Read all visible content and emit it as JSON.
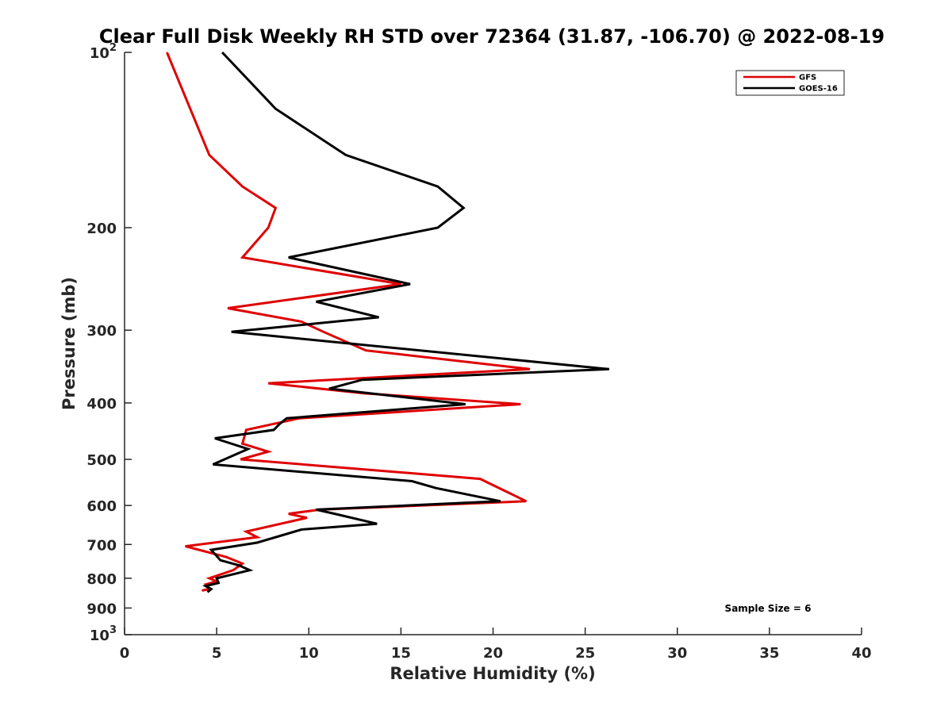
{
  "chart_data": {
    "type": "line",
    "title": "Clear Full Disk Weekly RH STD over 72364 (31.87, -106.70) @ 2022-08-19",
    "xlabel": "Relative Humidity (%)",
    "ylabel": "Pressure (mb)",
    "xlim": [
      0,
      40
    ],
    "ylim": [
      100,
      1000
    ],
    "y_scale": "log",
    "y_reversed": true,
    "x_ticks": [
      0,
      5,
      10,
      15,
      20,
      25,
      30,
      35,
      40
    ],
    "x_tick_labels": [
      "0",
      "5",
      "10",
      "15",
      "20",
      "25",
      "30",
      "35",
      "40"
    ],
    "y_ticks": [
      100,
      200,
      300,
      400,
      500,
      600,
      700,
      800,
      900,
      1000
    ],
    "y_tick_labels": [
      {
        "base": "10",
        "exp": "2"
      },
      {
        "base": "200",
        "exp": ""
      },
      {
        "base": "300",
        "exp": ""
      },
      {
        "base": "400",
        "exp": ""
      },
      {
        "base": "500",
        "exp": ""
      },
      {
        "base": "600",
        "exp": ""
      },
      {
        "base": "700",
        "exp": ""
      },
      {
        "base": "800",
        "exp": ""
      },
      {
        "base": "900",
        "exp": ""
      },
      {
        "base": "10",
        "exp": "3"
      }
    ],
    "grid": false,
    "legend_position": "top-right",
    "annotation": "Sample Size = 6",
    "series": [
      {
        "name": "GFS",
        "color": "#e00000",
        "points": [
          [
            2.3,
            100
          ],
          [
            4.6,
            150
          ],
          [
            6.4,
            170
          ],
          [
            8.2,
            185
          ],
          [
            7.8,
            200
          ],
          [
            6.4,
            225
          ],
          [
            15.0,
            250
          ],
          [
            5.6,
            275
          ],
          [
            9.6,
            290
          ],
          [
            10.8,
            302
          ],
          [
            13.1,
            325
          ],
          [
            22.0,
            350
          ],
          [
            7.8,
            370
          ],
          [
            13.0,
            385
          ],
          [
            21.5,
            402
          ],
          [
            9.5,
            425
          ],
          [
            6.6,
            445
          ],
          [
            6.4,
            470
          ],
          [
            7.8,
            485
          ],
          [
            6.3,
            500
          ],
          [
            19.3,
            540
          ],
          [
            21.8,
            590
          ],
          [
            10.6,
            610
          ],
          [
            8.9,
            620
          ],
          [
            9.9,
            630
          ],
          [
            6.6,
            665
          ],
          [
            7.2,
            680
          ],
          [
            3.3,
            705
          ],
          [
            5.5,
            735
          ],
          [
            6.4,
            755
          ],
          [
            5.9,
            775
          ],
          [
            4.6,
            800
          ],
          [
            5.0,
            810
          ],
          [
            4.4,
            820
          ],
          [
            4.6,
            835
          ],
          [
            4.2,
            840
          ]
        ]
      },
      {
        "name": "GOES-16",
        "color": "#000000",
        "points": [
          [
            5.3,
            100
          ],
          [
            8.2,
            125
          ],
          [
            12.0,
            150
          ],
          [
            17.0,
            170
          ],
          [
            18.4,
            185
          ],
          [
            17.0,
            200
          ],
          [
            8.9,
            225
          ],
          [
            15.5,
            250
          ],
          [
            10.4,
            268
          ],
          [
            13.8,
            285
          ],
          [
            5.8,
            302
          ],
          [
            26.3,
            350
          ],
          [
            12.9,
            365
          ],
          [
            11.1,
            378
          ],
          [
            18.5,
            402
          ],
          [
            8.8,
            425
          ],
          [
            8.4,
            435
          ],
          [
            8.1,
            445
          ],
          [
            4.9,
            460
          ],
          [
            6.7,
            480
          ],
          [
            4.8,
            510
          ],
          [
            15.6,
            545
          ],
          [
            16.9,
            560
          ],
          [
            20.4,
            590
          ],
          [
            10.4,
            610
          ],
          [
            11.4,
            620
          ],
          [
            13.7,
            645
          ],
          [
            9.6,
            660
          ],
          [
            7.2,
            695
          ],
          [
            4.7,
            715
          ],
          [
            5.2,
            745
          ],
          [
            6.2,
            760
          ],
          [
            6.8,
            775
          ],
          [
            5.0,
            800
          ],
          [
            5.1,
            815
          ],
          [
            4.4,
            825
          ],
          [
            4.7,
            835
          ],
          [
            4.5,
            845
          ]
        ]
      }
    ]
  }
}
